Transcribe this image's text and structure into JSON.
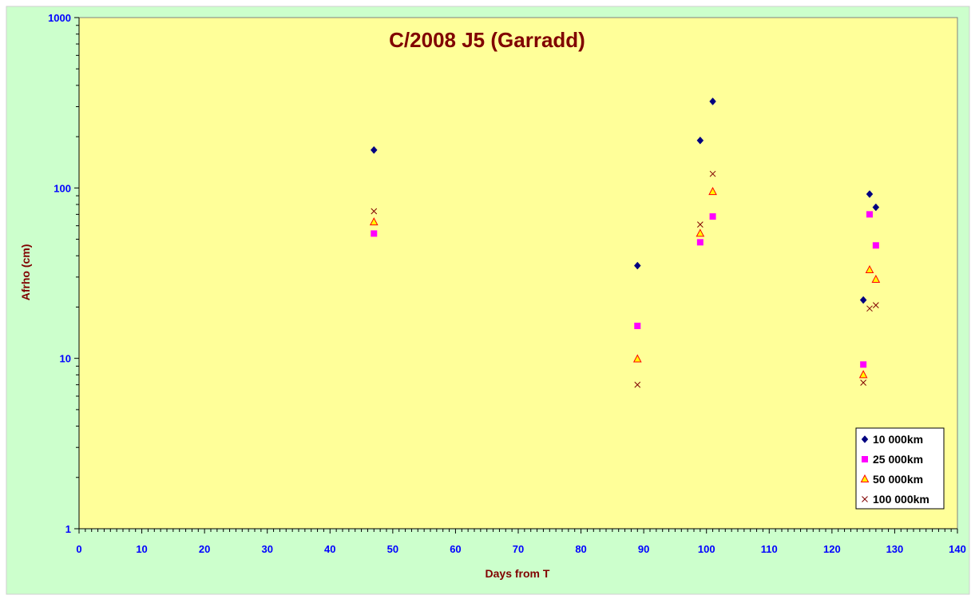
{
  "colors": {
    "background": "#CCFFCC",
    "plot_area": "#FFFF99",
    "title": "#800000",
    "axis_title": "#800000",
    "tick_label": "#0000FF",
    "axis_line": "#808080",
    "legend_bg": "#FFFFFF"
  },
  "chart_data": {
    "type": "scatter",
    "title": "C/2008 J5 (Garradd)",
    "xlabel": "Days from T",
    "ylabel": "Afrho (cm)",
    "xlim": [
      0,
      140
    ],
    "ylim": [
      1,
      1000
    ],
    "yscale": "log",
    "grid": false,
    "legend_position": "bottom-right",
    "x_ticks": [
      "0",
      "10",
      "20",
      "30",
      "40",
      "50",
      "60",
      "70",
      "80",
      "90",
      "100",
      "110",
      "120",
      "130",
      "140"
    ],
    "y_ticks": [
      "1",
      "10",
      "100",
      "1000"
    ],
    "series": [
      {
        "name": "10 000km",
        "marker": "diamond",
        "color": "#000080",
        "points": [
          [
            47,
            167
          ],
          [
            89,
            35
          ],
          [
            99,
            190
          ],
          [
            101,
            322
          ],
          [
            125,
            22
          ],
          [
            126,
            92
          ],
          [
            127,
            77
          ]
        ]
      },
      {
        "name": "25 000km",
        "marker": "square",
        "color": "#FF00FF",
        "points": [
          [
            47,
            54
          ],
          [
            89,
            15.5
          ],
          [
            99,
            48
          ],
          [
            101,
            68
          ],
          [
            125,
            9.2
          ],
          [
            126,
            70
          ],
          [
            127,
            46
          ]
        ]
      },
      {
        "name": "50 000km",
        "marker": "triangle",
        "color": "#FFFF00",
        "stroke": "#FF0000",
        "points": [
          [
            47,
            63
          ],
          [
            89,
            9.9
          ],
          [
            99,
            54
          ],
          [
            101,
            95
          ],
          [
            125,
            8.0
          ],
          [
            126,
            33
          ],
          [
            127,
            29
          ]
        ]
      },
      {
        "name": "100 000km",
        "marker": "x",
        "color": "#800000",
        "points": [
          [
            47,
            73
          ],
          [
            89,
            7.0
          ],
          [
            99,
            61
          ],
          [
            101,
            121
          ],
          [
            125,
            7.2
          ],
          [
            126,
            19.6
          ],
          [
            127,
            20.5
          ]
        ]
      }
    ]
  }
}
